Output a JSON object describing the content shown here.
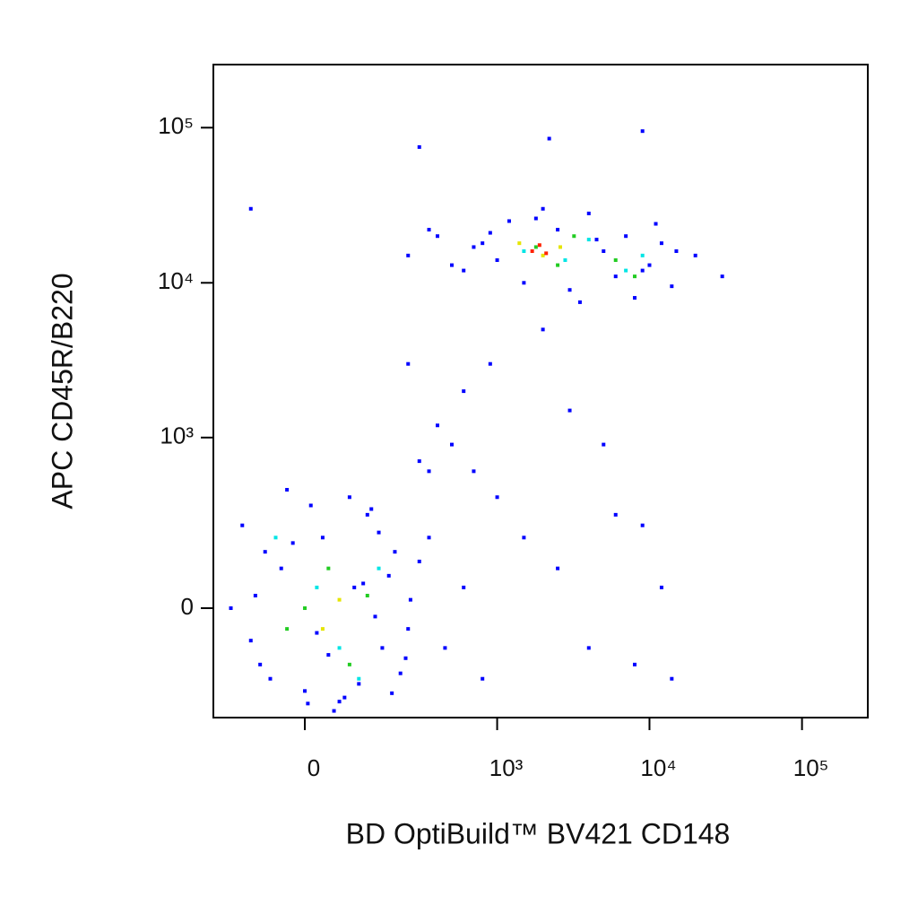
{
  "chart_data": {
    "type": "scatter",
    "xlabel": "BD OptiBuild™ BV421 CD148",
    "ylabel": "APC CD45R/B220",
    "xscale": "biexponential",
    "yscale": "biexponential",
    "xlim": [
      -205,
      270000
    ],
    "ylim": [
      -390,
      255000
    ],
    "xticks": [
      0,
      {
        "value": 1000,
        "label": "10³"
      },
      {
        "value": 10000,
        "label": "10⁴"
      },
      {
        "value": 100000,
        "label": "10⁵"
      }
    ],
    "yticks": [
      0,
      {
        "value": 1000,
        "label": "10³"
      },
      {
        "value": 10000,
        "label": "10⁴"
      },
      {
        "value": 100000,
        "label": "10⁵"
      }
    ],
    "series": [
      {
        "color": "#0000ff",
        "x": [
          -150,
          -80,
          -40,
          0,
          30,
          60,
          90,
          120,
          160,
          200,
          250,
          -120,
          -60,
          10,
          50,
          80,
          140,
          180,
          220,
          300,
          -100,
          -20,
          40,
          70,
          110,
          150,
          -90,
          20,
          100,
          260,
          350,
          450,
          600,
          800,
          -30,
          130,
          190,
          -70,
          5,
          240,
          300,
          500,
          700,
          1000,
          1500,
          2500,
          4000,
          6000,
          8000,
          12000,
          400,
          600,
          900,
          2000,
          3000,
          5000,
          9000,
          14000,
          250,
          350,
          250,
          400,
          600,
          800,
          1000,
          1200,
          1500,
          2000,
          2500,
          3000,
          4000,
          5000,
          6000,
          7000,
          8000,
          10000,
          12000,
          14000,
          350,
          500,
          700,
          900,
          1800,
          3500,
          4500,
          9000,
          11000,
          15000,
          20000,
          30000,
          -100,
          300,
          2200,
          9000
        ],
        "values": [
          0,
          -150,
          100,
          -250,
          200,
          -300,
          50,
          300,
          -100,
          150,
          -50,
          250,
          -200,
          350,
          -350,
          400,
          -20,
          80,
          -180,
          120,
          -80,
          180,
          -120,
          -280,
          60,
          220,
          30,
          -60,
          -220,
          20,
          200,
          -100,
          50,
          -200,
          450,
          330,
          -260,
          150,
          -310,
          -130,
          700,
          900,
          600,
          400,
          200,
          100,
          -100,
          300,
          -150,
          50,
          1200,
          2000,
          3000,
          5000,
          1500,
          900,
          250,
          -200,
          3000,
          600,
          15000,
          20000,
          12000,
          18000,
          14000,
          25000,
          10000,
          30000,
          22000,
          9000,
          28000,
          16000,
          11000,
          20000,
          8000,
          13000,
          18000,
          9500,
          22000,
          13000,
          17000,
          21000,
          26000,
          7500,
          19000,
          12000,
          24000,
          16000,
          15000,
          11000,
          30000,
          75000,
          85000,
          95000
        ]
      },
      {
        "color": "#00e5e5",
        "x": [
          20,
          60,
          -50,
          100,
          150,
          1500,
          2800,
          4000,
          7000,
          9000
        ],
        "values": [
          50,
          -100,
          200,
          -200,
          100,
          16000,
          14000,
          19000,
          12000,
          15000
        ]
      },
      {
        "color": "#22cc22",
        "x": [
          0,
          40,
          80,
          -30,
          120,
          1800,
          2500,
          3200,
          6000,
          8000
        ],
        "values": [
          0,
          100,
          -150,
          -50,
          30,
          17000,
          13000,
          20000,
          14000,
          11000
        ]
      },
      {
        "color": "#e5e500",
        "x": [
          30,
          60,
          2000,
          2600,
          1400
        ],
        "values": [
          -50,
          20,
          15000,
          17000,
          18000
        ]
      },
      {
        "color": "#ff2200",
        "x": [
          1700,
          2100,
          1900
        ],
        "values": [
          16000,
          15500,
          17500
        ]
      }
    ]
  }
}
